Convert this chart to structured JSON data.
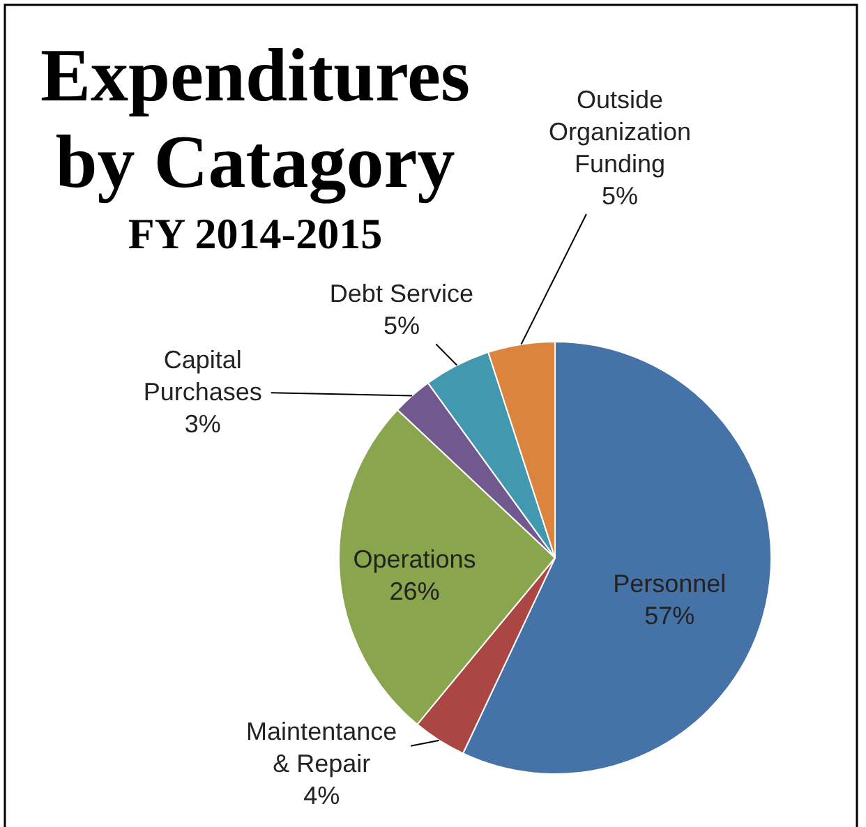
{
  "chart_data": {
    "type": "pie",
    "title": "Expenditures by Catagory",
    "subtitle": "FY 2014-2015",
    "categories": [
      "Personnel",
      "Maintentance & Repair",
      "Operations",
      "Capital Purchases",
      "Debt Service",
      "Outside Organization Funding"
    ],
    "values": [
      57,
      4,
      26,
      3,
      5,
      5
    ],
    "colors": [
      "#4572a7",
      "#aa4643",
      "#89a54e",
      "#71588f",
      "#4198af",
      "#db843d"
    ],
    "value_labels": [
      "57%",
      "4%",
      "26%",
      "3%",
      "5%",
      "5%"
    ]
  }
}
